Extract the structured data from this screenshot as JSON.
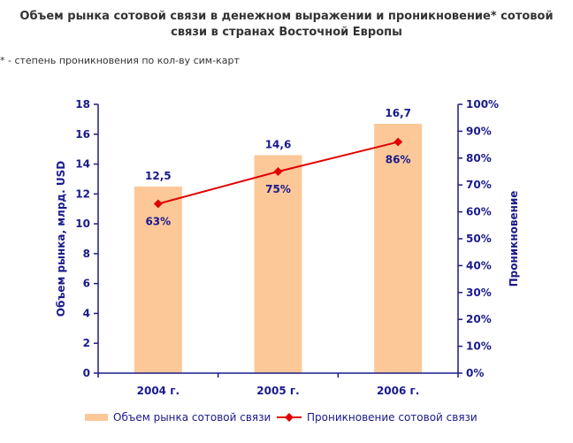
{
  "title_line1": "Объем рынка сотовой связи в денежном выражении и проникновение* сотовой",
  "title_line2": "связи в странах Восточной Европы",
  "footnote": "* - степень проникновения по кол-ву сим-карт",
  "chart_data": {
    "type": "bar",
    "categories": [
      "2004 г.",
      "2005 г.",
      "2006 г."
    ],
    "series": [
      {
        "name": "Объем рынка сотовой связи",
        "type": "bar",
        "axis": "left",
        "values": [
          12.5,
          14.6,
          16.7
        ],
        "labels": [
          "12,5",
          "14,6",
          "16,7"
        ],
        "color": "#fcc898"
      },
      {
        "name": "Проникновение сотовой связи",
        "type": "line",
        "axis": "right",
        "values": [
          63,
          75,
          86
        ],
        "labels": [
          "63%",
          "75%",
          "86%"
        ],
        "color": "#e00000"
      }
    ],
    "ylabel": "Объем рынка, млрд. USD",
    "y2label": "Проникновение",
    "ylim": [
      0,
      18
    ],
    "yticks": [
      "0",
      "2",
      "4",
      "6",
      "8",
      "10",
      "12",
      "14",
      "16",
      "18"
    ],
    "y2lim": [
      0,
      100
    ],
    "y2ticks": [
      "0%",
      "10%",
      "20%",
      "30%",
      "40%",
      "50%",
      "60%",
      "70%",
      "80%",
      "90%",
      "100%"
    ],
    "legend_position": "bottom",
    "grid": false,
    "axis_color": "#1a1a8c"
  }
}
